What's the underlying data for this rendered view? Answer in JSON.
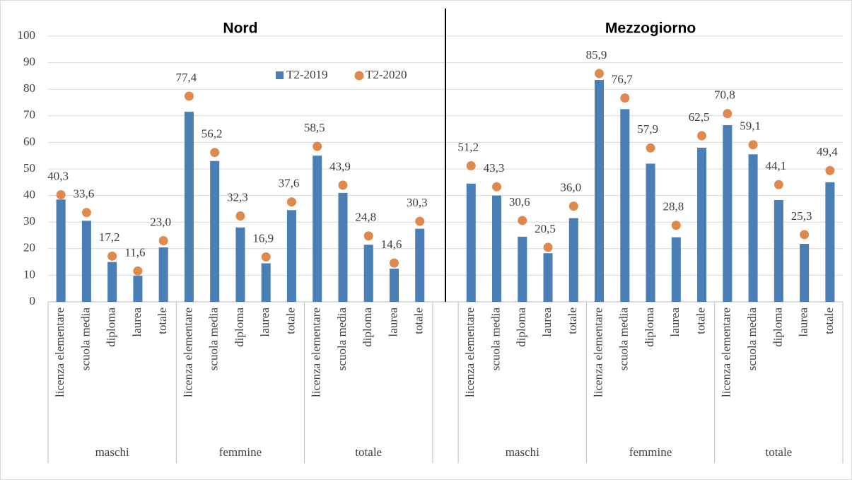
{
  "chart_data": {
    "type": "bar",
    "panels": [
      "Nord",
      "Mezzogiorno"
    ],
    "categories": [
      {
        "group": "maschi",
        "label": "licenza elementare"
      },
      {
        "group": "maschi",
        "label": "scuola media"
      },
      {
        "group": "maschi",
        "label": "diploma"
      },
      {
        "group": "maschi",
        "label": "laurea"
      },
      {
        "group": "maschi",
        "label": "totale"
      },
      {
        "group": "femmine",
        "label": "licenza elementare"
      },
      {
        "group": "femmine",
        "label": "scuola media"
      },
      {
        "group": "femmine",
        "label": "diploma"
      },
      {
        "group": "femmine",
        "label": "laurea"
      },
      {
        "group": "femmine",
        "label": "totale"
      },
      {
        "group": "totale",
        "label": "licenza elementare"
      },
      {
        "group": "totale",
        "label": "scuola media"
      },
      {
        "group": "totale",
        "label": "diploma"
      },
      {
        "group": "totale",
        "label": "laurea"
      },
      {
        "group": "totale",
        "label": "totale"
      },
      null,
      {
        "group": "maschi",
        "label": "licenza elementare"
      },
      {
        "group": "maschi",
        "label": "scuola media"
      },
      {
        "group": "maschi",
        "label": "diploma"
      },
      {
        "group": "maschi",
        "label": "laurea"
      },
      {
        "group": "maschi",
        "label": "totale"
      },
      {
        "group": "femmine",
        "label": "licenza elementare"
      },
      {
        "group": "femmine",
        "label": "scuola media"
      },
      {
        "group": "femmine",
        "label": "diploma"
      },
      {
        "group": "femmine",
        "label": "laurea"
      },
      {
        "group": "femmine",
        "label": "totale"
      },
      {
        "group": "totale",
        "label": "licenza elementare"
      },
      {
        "group": "totale",
        "label": "scuola media"
      },
      {
        "group": "totale",
        "label": "diploma"
      },
      {
        "group": "totale",
        "label": "laurea"
      },
      {
        "group": "totale",
        "label": "totale"
      }
    ],
    "series": [
      {
        "name": "T2-2019",
        "type": "bar",
        "color": "#4a7fb5",
        "values": [
          38.5,
          30.5,
          15,
          9.8,
          20.5,
          71.5,
          53,
          28,
          14.5,
          34.5,
          55,
          41,
          21.5,
          12.5,
          27.5,
          null,
          44.5,
          40,
          24.5,
          18.3,
          31.5,
          83.5,
          72.5,
          52,
          24.3,
          58,
          66.5,
          55.5,
          38.3,
          21.8,
          45
        ]
      },
      {
        "name": "T2-2020",
        "type": "scatter",
        "color": "#e0894c",
        "values": [
          40.3,
          33.6,
          17.2,
          11.6,
          23.0,
          77.4,
          56.2,
          32.3,
          16.9,
          37.6,
          58.5,
          43.9,
          24.8,
          14.6,
          30.3,
          null,
          51.2,
          43.3,
          30.6,
          20.5,
          36.0,
          85.9,
          76.7,
          57.9,
          28.8,
          62.5,
          70.8,
          59.1,
          44.1,
          25.3,
          49.4
        ],
        "value_labels": [
          "40,3",
          "33,6",
          "17,2",
          "11,6",
          "23,0",
          "77,4",
          "56,2",
          "32,3",
          "16,9",
          "37,6",
          "58,5",
          "43,9",
          "24,8",
          "14,6",
          "30,3",
          null,
          "51,2",
          "43,3",
          "30,6",
          "20,5",
          "36,0",
          "85,9",
          "76,7",
          "57,9",
          "28,8",
          "62,5",
          "70,8",
          "59,1",
          "44,1",
          "25,3",
          "49,4"
        ]
      }
    ],
    "ylim": [
      0,
      100
    ],
    "yticks": [
      0,
      10,
      20,
      30,
      40,
      50,
      60,
      70,
      80,
      90,
      100
    ],
    "grid": true,
    "legend": "top"
  }
}
